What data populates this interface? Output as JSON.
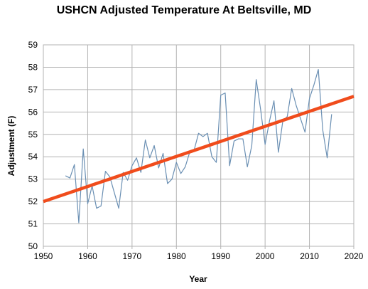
{
  "chart_data": {
    "type": "line",
    "title": "USHCN Adjusted Temperature At Beltsville, MD",
    "xlabel": "Year",
    "ylabel": "Adjustment (F)",
    "xlim": [
      1950,
      2020
    ],
    "ylim": [
      50,
      59
    ],
    "x_ticks": [
      "1950",
      "1960",
      "1970",
      "1980",
      "1990",
      "2000",
      "2010",
      "2020"
    ],
    "y_ticks": [
      "50",
      "51",
      "52",
      "53",
      "54",
      "55",
      "56",
      "57",
      "58",
      "59"
    ],
    "grid": true,
    "legend": "none",
    "series": [
      {
        "color": "#6a8fb3",
        "x": [
          1955,
          1956,
          1957,
          1958,
          1959,
          1960,
          1961,
          1962,
          1963,
          1964,
          1965,
          1966,
          1967,
          1968,
          1969,
          1970,
          1971,
          1972,
          1973,
          1974,
          1975,
          1976,
          1977,
          1978,
          1979,
          1980,
          1981,
          1982,
          1983,
          1984,
          1985,
          1986,
          1987,
          1988,
          1989,
          1990,
          1991,
          1992,
          1993,
          1994,
          1995,
          1996,
          1997,
          1998,
          1999,
          2000,
          2001,
          2002,
          2003,
          2004,
          2005,
          2006,
          2007,
          2008,
          2009,
          2010,
          2011,
          2012,
          2013,
          2014,
          2015
        ],
        "y": [
          53.15,
          53.05,
          53.65,
          51.05,
          54.35,
          51.9,
          52.7,
          51.7,
          51.8,
          53.35,
          53.1,
          52.4,
          51.7,
          53.3,
          52.95,
          53.6,
          53.95,
          53.3,
          54.75,
          53.95,
          54.5,
          53.5,
          54.15,
          52.8,
          53.0,
          53.75,
          53.25,
          53.55,
          54.2,
          54.3,
          55.05,
          54.9,
          55.05,
          54.0,
          53.75,
          56.75,
          56.85,
          53.6,
          54.7,
          54.8,
          54.8,
          53.55,
          54.5,
          57.45,
          56.1,
          54.55,
          55.6,
          56.5,
          54.2,
          55.6,
          55.8,
          57.05,
          56.3,
          55.7,
          55.1,
          56.6,
          57.2,
          57.9,
          55.2,
          53.95,
          55.9
        ]
      },
      {
        "color": "#f04c1c",
        "x": [
          1950,
          2020
        ],
        "y": [
          52.0,
          56.7
        ]
      }
    ]
  }
}
